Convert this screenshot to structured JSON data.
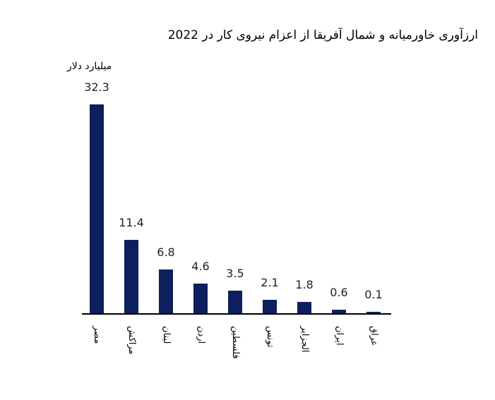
{
  "title": "ارزآوری خاورمیانه و شمال آفریقا از اعزام نیروی کار در 2022",
  "unit_label": "میلیارد دلار",
  "colors": {
    "bar": "#0d1f5c",
    "axis": "#000000"
  },
  "chart_data": {
    "type": "bar",
    "title": "ارزآوری خاورمیانه و شمال آفریقا از اعزام نیروی کار در 2022",
    "ylabel": "میلیارد دلار",
    "xlabel": "",
    "categories": [
      "مصر",
      "مراکش",
      "لبنان",
      "اردن",
      "فلسطین",
      "تونس",
      "الجزایر",
      "ایران",
      "عراق"
    ],
    "values": [
      32.3,
      11.4,
      6.8,
      4.6,
      3.5,
      2.1,
      1.8,
      0.6,
      0.1
    ],
    "value_labels": [
      "32.3",
      "11.4",
      "6.8",
      "4.6",
      "3.5",
      "2.1",
      "1.8",
      "0.6",
      "0.1"
    ],
    "ylim": [
      0,
      32.3
    ],
    "grid": false,
    "legend": null,
    "data_labels": true
  }
}
